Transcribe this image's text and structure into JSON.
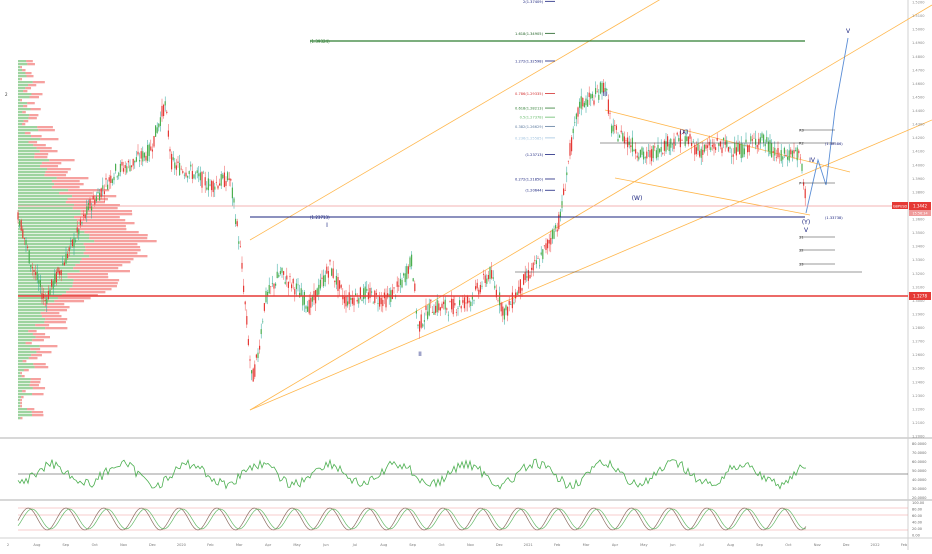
{
  "chart_data": {
    "type": "candlestick",
    "symbol_tag": "GBPUSD",
    "last_price": "1.3442",
    "countdown": "15:56:34",
    "support_price": "1.3278",
    "ylim": [
      1.2,
      1.52
    ],
    "y_ticks": [
      1.52,
      1.51,
      1.5,
      1.49,
      1.48,
      1.47,
      1.46,
      1.45,
      1.44,
      1.43,
      1.42,
      1.41,
      1.4,
      1.39,
      1.38,
      1.37,
      1.36,
      1.35,
      1.34,
      1.33,
      1.32,
      1.31,
      1.3,
      1.29,
      1.28,
      1.27,
      1.26,
      1.25,
      1.24,
      1.23,
      1.22,
      1.21,
      1.2
    ],
    "x_labels": [
      "2",
      "Aug",
      "Sep",
      "Oct",
      "Nov",
      "Dec",
      "2020",
      "Feb",
      "Mar",
      "Apr",
      "May",
      "Jun",
      "Jul",
      "Aug",
      "Sep",
      "Oct",
      "Nov",
      "Dec",
      "2021",
      "Feb",
      "Mar",
      "Apr",
      "May",
      "Jun",
      "Jul",
      "Aug",
      "Sep",
      "Oct",
      "Nov",
      "Dec",
      "2022",
      "Feb"
    ],
    "fib_levels": [
      {
        "label": "2(1.37409)",
        "value": 1.5205,
        "color": "#1a237e"
      },
      {
        "label": "1.618(1.34905)",
        "value": 1.4969,
        "color": "#1b5e20"
      },
      {
        "label": "1.272(1.32598)",
        "value": 1.4765,
        "color": "#1a237e"
      },
      {
        "label": "0.786(1.29335)",
        "value": 1.4525,
        "color": "#d32f2f"
      },
      {
        "label": "0.618(1.28213)",
        "value": 1.4418,
        "color": "#2e7d32"
      },
      {
        "label": "0.5(1.27378)",
        "value": 1.4351,
        "color": "#66bb6a"
      },
      {
        "label": "0.382(1.26629)",
        "value": 1.4283,
        "color": "#5c7a9e"
      },
      {
        "label": "0.236(1.25585)",
        "value": 1.4198,
        "color": "#a3c4e0"
      },
      {
        "label": "(1.23713)",
        "value": 1.4076,
        "color": "#1a237e"
      },
      {
        "label": "0.272(1.21850)",
        "value": 1.3895,
        "color": "#1a237e"
      },
      {
        "label": "(1.20644)",
        "value": 1.3812,
        "color": "#1a237e"
      }
    ],
    "left_level_label": "(1.39324)",
    "left_blue_label": "(1.23713)",
    "wave_labels": [
      "I",
      "II",
      "III",
      "(W)",
      "(X)",
      "(Y)",
      "V",
      "IV",
      "V"
    ],
    "pivot_labels": [
      "R3",
      "R2",
      "P",
      "S1",
      "S2",
      "S3"
    ],
    "pivot_value_labels": [
      "(1.38586)",
      "(1.33738)"
    ],
    "rsi_ticks": [
      "80.0000",
      "70.0000",
      "60.0000",
      "50.0000",
      "40.0000",
      "30.0000",
      "20.0000"
    ],
    "stoch_ticks": [
      "100.00",
      "80.00",
      "60.00",
      "40.00",
      "20.00",
      "0.00"
    ],
    "left_edge_label": "2"
  }
}
